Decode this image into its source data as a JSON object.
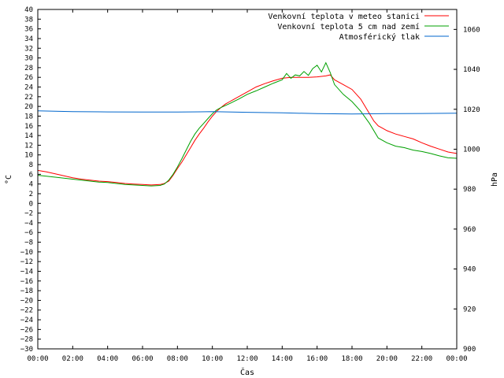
{
  "chart_data": {
    "type": "line",
    "x_tick_labels": [
      "00:00",
      "02:00",
      "04:00",
      "06:00",
      "08:00",
      "10:00",
      "12:00",
      "14:00",
      "16:00",
      "18:00",
      "20:00",
      "22:00",
      "00:00"
    ],
    "xlabel": "Čas",
    "ylabel_left": "°C",
    "ylabel_right": "hPa",
    "ylim_left": [
      -30,
      40
    ],
    "y_left_step": 2,
    "ylim_right": [
      900,
      1070
    ],
    "y_right_ticks": [
      900,
      920,
      940,
      960,
      980,
      1000,
      1020,
      1040,
      1060
    ],
    "grid": false,
    "legend_position": "top-right",
    "series": [
      {
        "name": "Venkovní teplota v meteo stanici",
        "axis": "left",
        "color": "#ff0000",
        "x": [
          0,
          0.5,
          1,
          1.5,
          2,
          2.5,
          3,
          3.5,
          4,
          4.5,
          5,
          5.5,
          6,
          6.5,
          7,
          7.25,
          7.5,
          7.75,
          8,
          8.25,
          8.5,
          8.75,
          9,
          9.25,
          9.5,
          9.75,
          10,
          10.25,
          10.5,
          10.75,
          11,
          11.5,
          12,
          12.5,
          13,
          13.5,
          14,
          14.5,
          15,
          15.5,
          16,
          16.25,
          16.5,
          16.75,
          17,
          17.5,
          18,
          18.5,
          19,
          19.25,
          19.5,
          19.75,
          20,
          20.5,
          21,
          21.5,
          22,
          22.5,
          23,
          23.5,
          24
        ],
        "y": [
          6.8,
          6.5,
          6.1,
          5.7,
          5.3,
          5,
          4.8,
          4.6,
          4.5,
          4.3,
          4.1,
          4,
          3.9,
          3.8,
          3.9,
          4.1,
          4.6,
          5.8,
          7.2,
          8.5,
          10,
          11.5,
          13,
          14.3,
          15.5,
          16.8,
          18,
          19,
          19.8,
          20.5,
          21,
          22,
          23,
          24,
          24.7,
          25.3,
          25.8,
          26,
          26,
          26,
          26.1,
          26.2,
          26.3,
          26.5,
          25.5,
          24.5,
          23.5,
          21.5,
          18.5,
          17,
          16,
          15.5,
          15,
          14.3,
          13.8,
          13.3,
          12.5,
          11.8,
          11.2,
          10.6,
          10.3
        ]
      },
      {
        "name": "Venkovní teplota 5 cm nad zemí",
        "axis": "left",
        "color": "#00a000",
        "x": [
          0,
          0.5,
          1,
          1.5,
          2,
          2.5,
          3,
          3.5,
          4,
          4.5,
          5,
          5.5,
          6,
          6.5,
          7,
          7.25,
          7.5,
          7.75,
          8,
          8.25,
          8.5,
          8.75,
          9,
          9.25,
          9.5,
          9.75,
          10,
          10.25,
          10.5,
          10.75,
          11,
          11.5,
          12,
          12.5,
          13,
          13.5,
          14,
          14.25,
          14.5,
          14.75,
          15,
          15.25,
          15.5,
          15.75,
          16,
          16.25,
          16.5,
          16.75,
          17,
          17.5,
          18,
          18.5,
          19,
          19.5,
          20,
          20.5,
          21,
          21.5,
          22,
          22.5,
          23,
          23.5,
          24
        ],
        "y": [
          5.8,
          5.6,
          5.4,
          5.2,
          5,
          4.8,
          4.6,
          4.4,
          4.3,
          4.1,
          3.9,
          3.8,
          3.7,
          3.6,
          3.7,
          4,
          4.8,
          6,
          7.5,
          9.2,
          11,
          12.8,
          14.3,
          15.5,
          16.5,
          17.5,
          18.5,
          19.3,
          19.8,
          20.2,
          20.6,
          21.5,
          22.5,
          23.2,
          24,
          24.8,
          25.5,
          26.8,
          25.8,
          26.5,
          26.3,
          27.2,
          26.4,
          27.8,
          28.5,
          27.1,
          29,
          27,
          24.5,
          22.5,
          21,
          19,
          16.5,
          13.5,
          12.5,
          11.8,
          11.5,
          11,
          10.7,
          10.3,
          9.8,
          9.4,
          9.3
        ]
      },
      {
        "name": "Atmosférický tlak",
        "axis": "right",
        "color": "#0066cc",
        "x": [
          0,
          1,
          2,
          4,
          6,
          8,
          10,
          12,
          14,
          16,
          18,
          20,
          22,
          24
        ],
        "y": [
          1019.2,
          1019,
          1018.8,
          1018.7,
          1018.6,
          1018.6,
          1018.8,
          1018.5,
          1018.2,
          1017.8,
          1017.6,
          1017.8,
          1017.9,
          1018
        ]
      }
    ]
  }
}
